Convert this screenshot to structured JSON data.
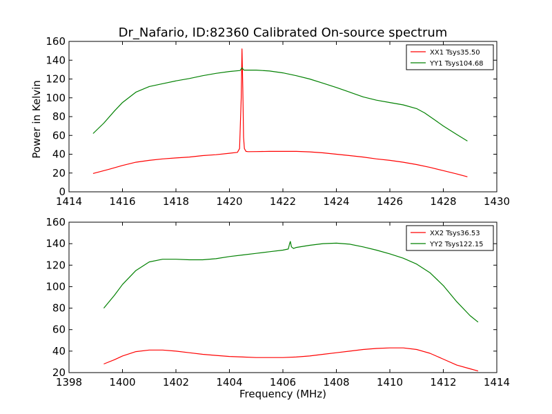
{
  "figure": {
    "title": "Dr_Nafario, ID:82360 Calibrated On-source spectrum",
    "ylabel": "Power in Kelvin",
    "xlabel": "Frequency (MHz)"
  },
  "colors": {
    "red": "#ff0000",
    "green": "#008000",
    "axis": "#000000"
  },
  "chart_data": [
    {
      "type": "line",
      "xlim": [
        1414,
        1430
      ],
      "ylim": [
        0,
        160
      ],
      "xticks": [
        1414,
        1416,
        1418,
        1420,
        1422,
        1424,
        1426,
        1428,
        1430
      ],
      "yticks": [
        0,
        20,
        40,
        60,
        80,
        100,
        120,
        140,
        160
      ],
      "grid": false,
      "legend_position": "top-right",
      "series": [
        {
          "name": "XX1 Tsys35.50",
          "color": "#ff0000",
          "x": [
            1414.9,
            1415.5,
            1416,
            1416.5,
            1417,
            1417.5,
            1418,
            1418.5,
            1419,
            1419.5,
            1420,
            1420.3,
            1420.38,
            1420.44,
            1420.47,
            1420.5,
            1420.53,
            1420.56,
            1420.62,
            1420.7,
            1421,
            1421.5,
            1422,
            1422.5,
            1423,
            1423.5,
            1424,
            1424.5,
            1425,
            1425.5,
            1426,
            1426.5,
            1427,
            1427.5,
            1428,
            1428.5,
            1428.9
          ],
          "y": [
            19.5,
            24,
            28,
            31.5,
            33.5,
            35,
            36,
            37,
            38.5,
            39.5,
            41,
            42,
            46,
            100,
            152,
            110,
            58,
            46,
            43,
            42.7,
            42.8,
            43,
            43,
            43,
            42.5,
            41.5,
            40,
            38.5,
            37,
            35,
            33.5,
            31.5,
            29,
            26,
            22.5,
            19,
            16
          ]
        },
        {
          "name": "YY1 Tsys104.68",
          "color": "#008000",
          "x": [
            1414.9,
            1415.3,
            1415.7,
            1416,
            1416.5,
            1417,
            1417.5,
            1418,
            1418.5,
            1419,
            1419.5,
            1420,
            1420.4,
            1420.47,
            1420.54,
            1421,
            1421.5,
            1422,
            1422.5,
            1423,
            1423.5,
            1424,
            1424.5,
            1425,
            1425.5,
            1426,
            1426.5,
            1427,
            1427.3,
            1427.7,
            1428,
            1428.5,
            1428.9
          ],
          "y": [
            62,
            73,
            86,
            95,
            106,
            112,
            115,
            118,
            120.5,
            123.5,
            126,
            128,
            129,
            132,
            129.5,
            129.5,
            128.5,
            126.5,
            123.5,
            120,
            115.5,
            111,
            106,
            101,
            97.5,
            95,
            92.5,
            88.5,
            84,
            76,
            70,
            61,
            54
          ]
        }
      ]
    },
    {
      "type": "line",
      "xlim": [
        1398,
        1414
      ],
      "ylim": [
        20,
        160
      ],
      "xticks": [
        1398,
        1400,
        1402,
        1404,
        1406,
        1408,
        1410,
        1412,
        1414
      ],
      "yticks": [
        20,
        40,
        60,
        80,
        100,
        120,
        140,
        160
      ],
      "grid": false,
      "legend_position": "top-right",
      "series": [
        {
          "name": "XX2 Tsys36.53",
          "color": "#ff0000",
          "x": [
            1399.3,
            1399.7,
            1400,
            1400.5,
            1401,
            1401.5,
            1402,
            1402.5,
            1403,
            1403.5,
            1404,
            1404.5,
            1405,
            1405.5,
            1406,
            1406.5,
            1407,
            1407.5,
            1408,
            1408.5,
            1409,
            1409.5,
            1410,
            1410.5,
            1411,
            1411.5,
            1412,
            1412.5,
            1413,
            1413.3
          ],
          "y": [
            28,
            32,
            35.5,
            39.5,
            41,
            41,
            40,
            38.5,
            37,
            36,
            35,
            34.5,
            34,
            34,
            34,
            34.5,
            35.5,
            37,
            38.5,
            40,
            41.5,
            42.5,
            43,
            43,
            41.5,
            38,
            32.5,
            27,
            23.5,
            21.5
          ]
        },
        {
          "name": "YY2 Tsys122.15",
          "color": "#008000",
          "x": [
            1399.3,
            1399.7,
            1400,
            1400.5,
            1401,
            1401.5,
            1402,
            1402.5,
            1403,
            1403.5,
            1404,
            1404.5,
            1405,
            1405.5,
            1406,
            1406.2,
            1406.25,
            1406.28,
            1406.32,
            1406.4,
            1406.5,
            1407,
            1407.5,
            1408,
            1408.5,
            1409,
            1409.5,
            1410,
            1410.5,
            1411,
            1411.5,
            1412,
            1412.5,
            1413,
            1413.3
          ],
          "y": [
            80,
            92,
            102,
            115,
            123,
            125.5,
            125.5,
            125,
            125,
            126,
            128,
            129.5,
            131,
            132.5,
            134,
            135,
            140,
            142,
            137,
            135.5,
            136.5,
            138.5,
            140,
            140.5,
            139.5,
            137,
            134,
            130.5,
            126.5,
            121,
            113,
            101,
            86,
            73,
            67
          ]
        }
      ]
    }
  ]
}
